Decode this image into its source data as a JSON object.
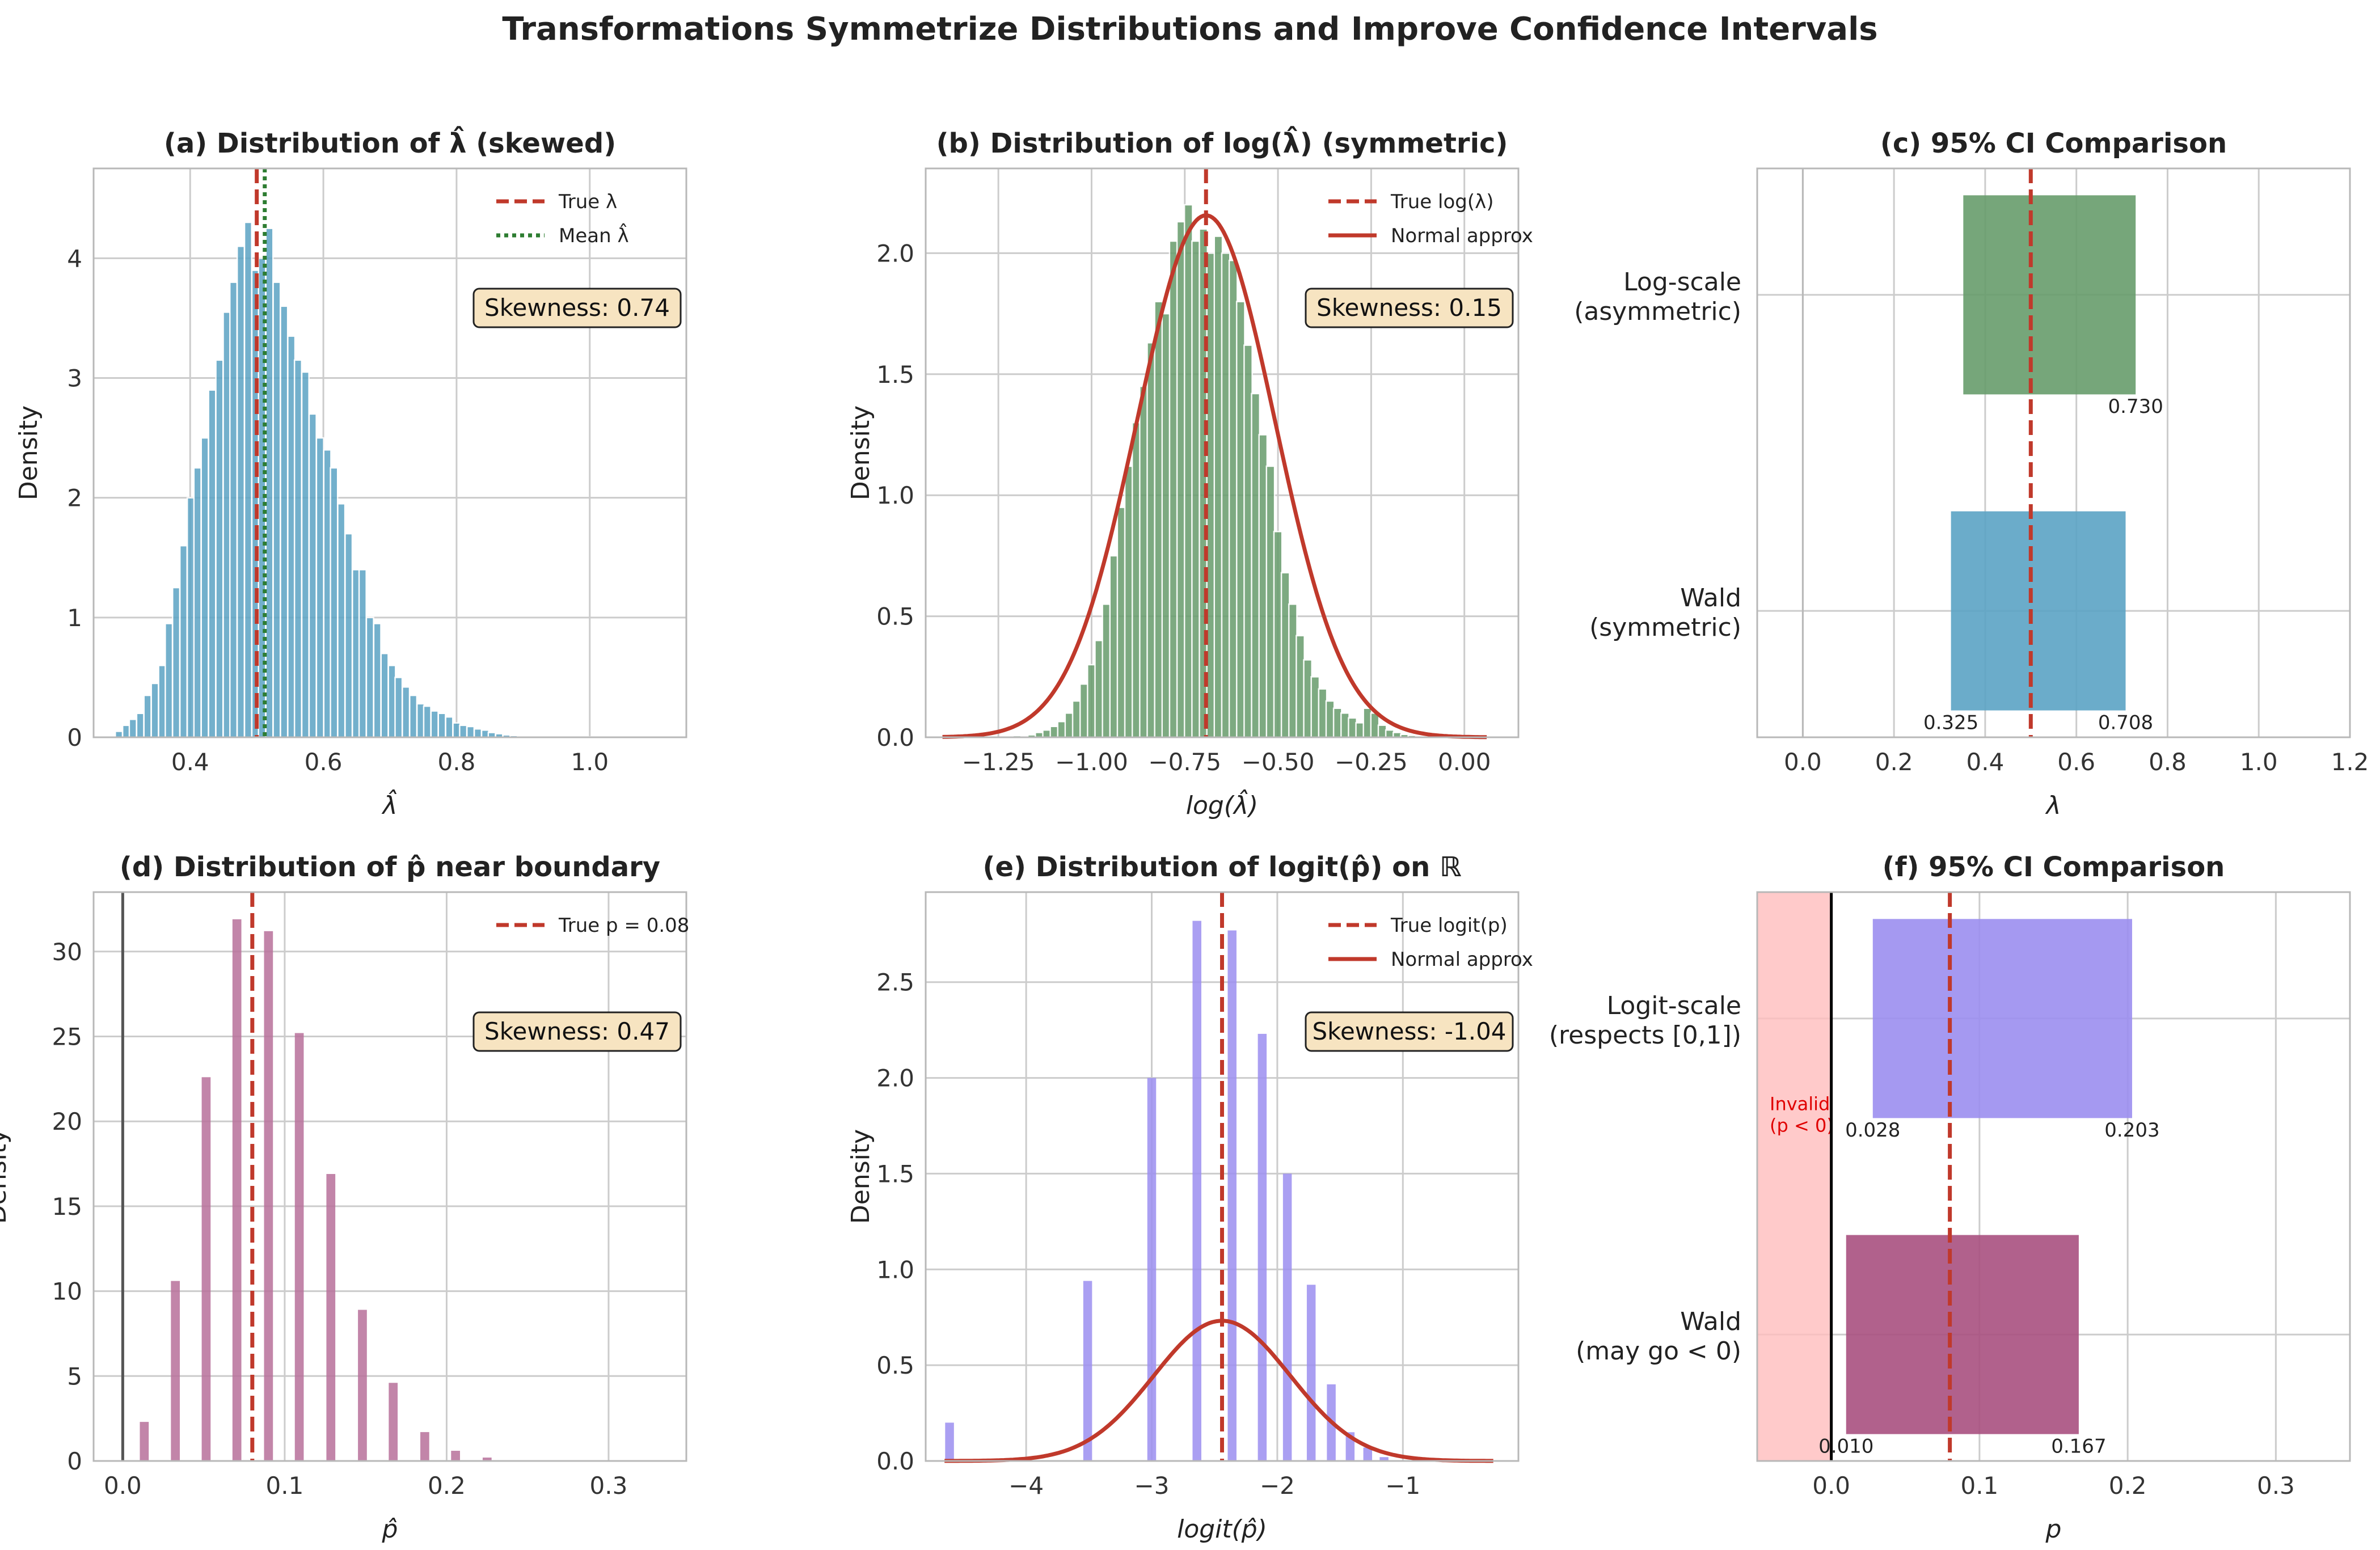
{
  "title": "Transformations Symmetrize Distributions and Improve Confidence Intervals",
  "colors": {
    "red": "#c0392b",
    "blue": "#5ba3c4",
    "green": "#679c6c",
    "purple": "#b7709a",
    "lavender": "#9b8ef0",
    "green_dark": "#2e7d32",
    "maroon": "#a8507f",
    "pink": "#ffbdbd",
    "grid": "#cccccc",
    "axis": "#b8b8b8",
    "skew_box": "#f7e4c1"
  },
  "chart_data": [
    {
      "id": "a",
      "type": "bar",
      "title": "(a) Distribution of λ̂ (skewed)",
      "xlabel": "λ̂",
      "ylabel": "Density",
      "xlim": [
        0.255,
        1.145
      ],
      "ylim": [
        0,
        4.75
      ],
      "xticks": [
        0.4,
        0.6,
        0.8,
        1.0
      ],
      "xtick_labels": [
        "0.4",
        "0.6",
        "0.8",
        "1.0"
      ],
      "yticks": [
        0,
        1,
        2,
        3,
        4
      ],
      "ytick_labels": [
        "0",
        "1",
        "2",
        "3",
        "4"
      ],
      "bar_width": 0.0108,
      "bars": [
        [
          0.282,
          0.01
        ],
        [
          0.293,
          0.05
        ],
        [
          0.304,
          0.1
        ],
        [
          0.314,
          0.15
        ],
        [
          0.325,
          0.2
        ],
        [
          0.336,
          0.35
        ],
        [
          0.347,
          0.45
        ],
        [
          0.358,
          0.6
        ],
        [
          0.368,
          0.95
        ],
        [
          0.379,
          1.25
        ],
        [
          0.39,
          1.6
        ],
        [
          0.401,
          2.0
        ],
        [
          0.411,
          2.25
        ],
        [
          0.422,
          2.5
        ],
        [
          0.433,
          2.9
        ],
        [
          0.444,
          3.15
        ],
        [
          0.455,
          3.55
        ],
        [
          0.465,
          3.8
        ],
        [
          0.476,
          4.1
        ],
        [
          0.487,
          4.3
        ],
        [
          0.498,
          3.9
        ],
        [
          0.508,
          4.0
        ],
        [
          0.519,
          4.25
        ],
        [
          0.53,
          3.8
        ],
        [
          0.541,
          3.6
        ],
        [
          0.552,
          3.35
        ],
        [
          0.562,
          3.15
        ],
        [
          0.573,
          3.05
        ],
        [
          0.584,
          2.7
        ],
        [
          0.595,
          2.5
        ],
        [
          0.606,
          2.4
        ],
        [
          0.616,
          2.25
        ],
        [
          0.627,
          1.95
        ],
        [
          0.638,
          1.7
        ],
        [
          0.649,
          1.4
        ],
        [
          0.659,
          1.4
        ],
        [
          0.67,
          1.0
        ],
        [
          0.681,
          0.95
        ],
        [
          0.692,
          0.7
        ],
        [
          0.703,
          0.6
        ],
        [
          0.713,
          0.5
        ],
        [
          0.724,
          0.42
        ],
        [
          0.735,
          0.35
        ],
        [
          0.746,
          0.28
        ],
        [
          0.756,
          0.26
        ],
        [
          0.767,
          0.22
        ],
        [
          0.778,
          0.2
        ],
        [
          0.789,
          0.17
        ],
        [
          0.8,
          0.12
        ],
        [
          0.81,
          0.1
        ],
        [
          0.821,
          0.09
        ],
        [
          0.832,
          0.07
        ],
        [
          0.843,
          0.06
        ],
        [
          0.853,
          0.04
        ],
        [
          0.864,
          0.03
        ],
        [
          0.875,
          0.02
        ],
        [
          0.886,
          0.015
        ],
        [
          0.897,
          0.01
        ],
        [
          0.907,
          0.01
        ],
        [
          0.918,
          0.008
        ],
        [
          0.94,
          0.006
        ],
        [
          0.961,
          0.006
        ],
        [
          0.983,
          0.01
        ],
        [
          1.004,
          0.004
        ],
        [
          1.026,
          0.004
        ],
        [
          1.102,
          0.003
        ]
      ],
      "vlines": [
        {
          "x": 0.5,
          "style": "dashed",
          "color": "red"
        },
        {
          "x": 0.512,
          "style": "dotted",
          "color": "green_dark"
        }
      ],
      "legend": [
        {
          "label": "True λ",
          "style": "dashed",
          "color": "red"
        },
        {
          "label": "Mean λ̂",
          "style": "dotted",
          "color": "green_dark"
        }
      ],
      "legend_position": "top-right",
      "skewness_label": "Skewness: 0.74"
    },
    {
      "id": "b",
      "type": "bar",
      "title": "(b) Distribution of log(λ̂) (symmetric)",
      "xlabel": "log(λ̂)",
      "ylabel": "Density",
      "xlim": [
        -1.445,
        0.145
      ],
      "ylim": [
        0,
        2.35
      ],
      "xticks": [
        -1.25,
        -1.0,
        -0.75,
        -0.5,
        -0.25,
        0.0
      ],
      "xtick_labels": [
        "−1.25",
        "−1.00",
        "−0.75",
        "−0.50",
        "−0.25",
        "0.00"
      ],
      "yticks": [
        0,
        0.5,
        1.0,
        1.5,
        2.0
      ],
      "ytick_labels": [
        "0.0",
        "0.5",
        "1.0",
        "1.5",
        "2.0"
      ],
      "bar_width": 0.0218,
      "bars": [
        [
          -1.385,
          0.003
        ],
        [
          -1.2,
          0.007
        ],
        [
          -1.16,
          0.01
        ],
        [
          -1.14,
          0.02
        ],
        [
          -1.12,
          0.03
        ],
        [
          -1.1,
          0.045
        ],
        [
          -1.08,
          0.065
        ],
        [
          -1.06,
          0.1
        ],
        [
          -1.04,
          0.15
        ],
        [
          -1.02,
          0.22
        ],
        [
          -1.0,
          0.3
        ],
        [
          -0.98,
          0.4
        ],
        [
          -0.96,
          0.55
        ],
        [
          -0.94,
          0.75
        ],
        [
          -0.92,
          0.95
        ],
        [
          -0.9,
          1.12
        ],
        [
          -0.88,
          1.3
        ],
        [
          -0.86,
          1.45
        ],
        [
          -0.84,
          1.63
        ],
        [
          -0.82,
          1.8
        ],
        [
          -0.8,
          1.75
        ],
        [
          -0.78,
          2.05
        ],
        [
          -0.76,
          2.13
        ],
        [
          -0.74,
          2.2
        ],
        [
          -0.72,
          2.05
        ],
        [
          -0.7,
          2.1
        ],
        [
          -0.68,
          2.0
        ],
        [
          -0.66,
          2.07
        ],
        [
          -0.64,
          2.0
        ],
        [
          -0.62,
          1.97
        ],
        [
          -0.6,
          1.8
        ],
        [
          -0.58,
          1.62
        ],
        [
          -0.56,
          1.42
        ],
        [
          -0.54,
          1.25
        ],
        [
          -0.52,
          1.12
        ],
        [
          -0.5,
          0.85
        ],
        [
          -0.48,
          0.68
        ],
        [
          -0.46,
          0.55
        ],
        [
          -0.44,
          0.42
        ],
        [
          -0.42,
          0.32
        ],
        [
          -0.4,
          0.25
        ],
        [
          -0.38,
          0.2
        ],
        [
          -0.36,
          0.15
        ],
        [
          -0.34,
          0.12
        ],
        [
          -0.32,
          0.1
        ],
        [
          -0.3,
          0.08
        ],
        [
          -0.28,
          0.06
        ],
        [
          -0.26,
          0.12
        ],
        [
          -0.24,
          0.1
        ],
        [
          -0.22,
          0.05
        ],
        [
          -0.2,
          0.03
        ],
        [
          -0.18,
          0.02
        ],
        [
          -0.16,
          0.012
        ],
        [
          -0.14,
          0.008
        ],
        [
          -0.12,
          0.004
        ],
        [
          0.02,
          0.002
        ]
      ],
      "curve": {
        "mu": -0.693,
        "sigma": 0.185,
        "x_range": [
          -1.4,
          0.06
        ],
        "label": "Normal approx"
      },
      "vlines": [
        {
          "x": -0.693,
          "style": "dashed",
          "color": "red"
        }
      ],
      "legend": [
        {
          "label": "True log(λ)",
          "style": "dashed",
          "color": "red"
        },
        {
          "label": "Normal approx",
          "style": "solid",
          "color": "red"
        }
      ],
      "legend_position": "top-right",
      "skewness_label": "Skewness: 0.15"
    },
    {
      "id": "c",
      "type": "interval",
      "title": "(c) 95% CI Comparison",
      "xlabel": "λ",
      "ylabel": "",
      "xlim": [
        -0.1,
        1.2
      ],
      "ylim": [
        -0.4,
        1.4
      ],
      "xticks": [
        0,
        0.2,
        0.4,
        0.6,
        0.8,
        1.0,
        1.2
      ],
      "xtick_labels": [
        "0.0",
        "0.2",
        "0.4",
        "0.6",
        "0.8",
        "1.0",
        "1.2"
      ],
      "categories": [
        {
          "label_line1": "Wald",
          "label_line2": "(symmetric)",
          "low": 0.325,
          "high": 0.708,
          "color": "blue",
          "low_label": "0.325",
          "high_label": "0.708",
          "y": 0
        },
        {
          "label_line1": "Log-scale",
          "label_line2": "(asymmetric)",
          "low": 0.352,
          "high": 0.73,
          "color": "green",
          "low_label": "",
          "high_label": "0.730",
          "y": 1
        }
      ],
      "vlines": [
        {
          "x": 0.5,
          "style": "dashed",
          "color": "red"
        },
        {
          "x": 0,
          "style": "solid",
          "color": "axis"
        }
      ]
    },
    {
      "id": "d",
      "type": "bar",
      "title": "(d) Distribution of p̂ near boundary",
      "xlabel": "p̂",
      "ylabel": "Density",
      "xlim": [
        -0.018,
        0.348
      ],
      "ylim": [
        0,
        33.5
      ],
      "xticks": [
        0.0,
        0.1,
        0.2,
        0.3
      ],
      "xtick_labels": [
        "0.0",
        "0.1",
        "0.2",
        "0.3"
      ],
      "yticks": [
        0,
        5,
        10,
        15,
        20,
        25,
        30
      ],
      "ytick_labels": [
        "0",
        "5",
        "10",
        "15",
        "20",
        "25",
        "30"
      ],
      "bar_width": 0.0055,
      "bars": [
        [
          0.0133,
          2.3
        ],
        [
          0.0325,
          10.6
        ],
        [
          0.0515,
          22.6
        ],
        [
          0.0705,
          31.9
        ],
        [
          0.09,
          31.2
        ],
        [
          0.109,
          25.2
        ],
        [
          0.1285,
          16.9
        ],
        [
          0.148,
          8.9
        ],
        [
          0.167,
          4.6
        ],
        [
          0.1865,
          1.7
        ],
        [
          0.2055,
          0.6
        ],
        [
          0.225,
          0.2
        ]
      ],
      "vlines": [
        {
          "x": 0.08,
          "style": "dashed",
          "color": "red"
        },
        {
          "x": 0,
          "style": "solid",
          "color": "axis_dark"
        }
      ],
      "legend": [
        {
          "label": "True p = 0.08",
          "style": "dashed",
          "color": "red"
        }
      ],
      "legend_position": "top-right",
      "skewness_label": "Skewness: 0.47"
    },
    {
      "id": "e",
      "type": "bar",
      "title": "(e) Distribution of logit(p̂) on ℝ",
      "xlabel": "logit(p̂)",
      "ylabel": "Density",
      "xlim": [
        -4.8,
        -0.08
      ],
      "ylim": [
        0,
        2.97
      ],
      "xticks": [
        -4,
        -3,
        -2,
        -1
      ],
      "xtick_labels": [
        "−4",
        "−3",
        "−2",
        "−1"
      ],
      "yticks": [
        0,
        0.5,
        1.0,
        1.5,
        2.0,
        2.5
      ],
      "ytick_labels": [
        "0.0",
        "0.5",
        "1.0",
        "1.5",
        "2.0",
        "2.5"
      ],
      "bar_width": 0.07,
      "bars": [
        [
          -4.61,
          0.2
        ],
        [
          -3.51,
          0.94
        ],
        [
          -3.0,
          2.0
        ],
        [
          -2.64,
          2.82
        ],
        [
          -2.36,
          2.77
        ],
        [
          -2.12,
          2.23
        ],
        [
          -1.92,
          1.5
        ],
        [
          -1.73,
          0.92
        ],
        [
          -1.57,
          0.4
        ],
        [
          -1.42,
          0.15
        ],
        [
          -1.28,
          0.07
        ],
        [
          -1.15,
          0.02
        ]
      ],
      "curve": {
        "mu": -2.44,
        "sigma": 0.545,
        "x_range": [
          -4.65,
          -0.28
        ],
        "label": "Normal approx"
      },
      "vlines": [
        {
          "x": -2.44,
          "style": "dashed",
          "color": "red"
        }
      ],
      "legend": [
        {
          "label": "True logit(p)",
          "style": "dashed",
          "color": "red"
        },
        {
          "label": "Normal approx",
          "style": "solid",
          "color": "red"
        }
      ],
      "legend_position": "top-right",
      "skewness_label": "Skewness: -1.04"
    },
    {
      "id": "f",
      "type": "interval",
      "title": "(f) 95% CI Comparison",
      "xlabel": "p",
      "ylabel": "",
      "xlim": [
        -0.05,
        0.35
      ],
      "ylim": [
        -0.4,
        1.4
      ],
      "xticks": [
        0.0,
        0.1,
        0.2,
        0.3
      ],
      "xtick_labels": [
        "0.0",
        "0.1",
        "0.2",
        "0.3"
      ],
      "categories": [
        {
          "label_line1": "Wald",
          "label_line2": "(may go < 0)",
          "low": 0.01,
          "high": 0.167,
          "color": "maroon",
          "low_label": "0.010",
          "high_label": "0.167",
          "y": 0
        },
        {
          "label_line1": "Logit-scale",
          "label_line2": "(respects [0,1])",
          "low": 0.028,
          "high": 0.203,
          "color": "lavender",
          "low_label": "0.028",
          "high_label": "0.203",
          "y": 1
        }
      ],
      "invalid_region": {
        "x_from": -0.05,
        "x_to": 0,
        "label_line1": "Invalid",
        "label_line2": "(p < 0)"
      },
      "vlines": [
        {
          "x": 0.08,
          "style": "dashed",
          "color": "red"
        },
        {
          "x": 0,
          "style": "solid",
          "color": "black"
        }
      ]
    }
  ]
}
